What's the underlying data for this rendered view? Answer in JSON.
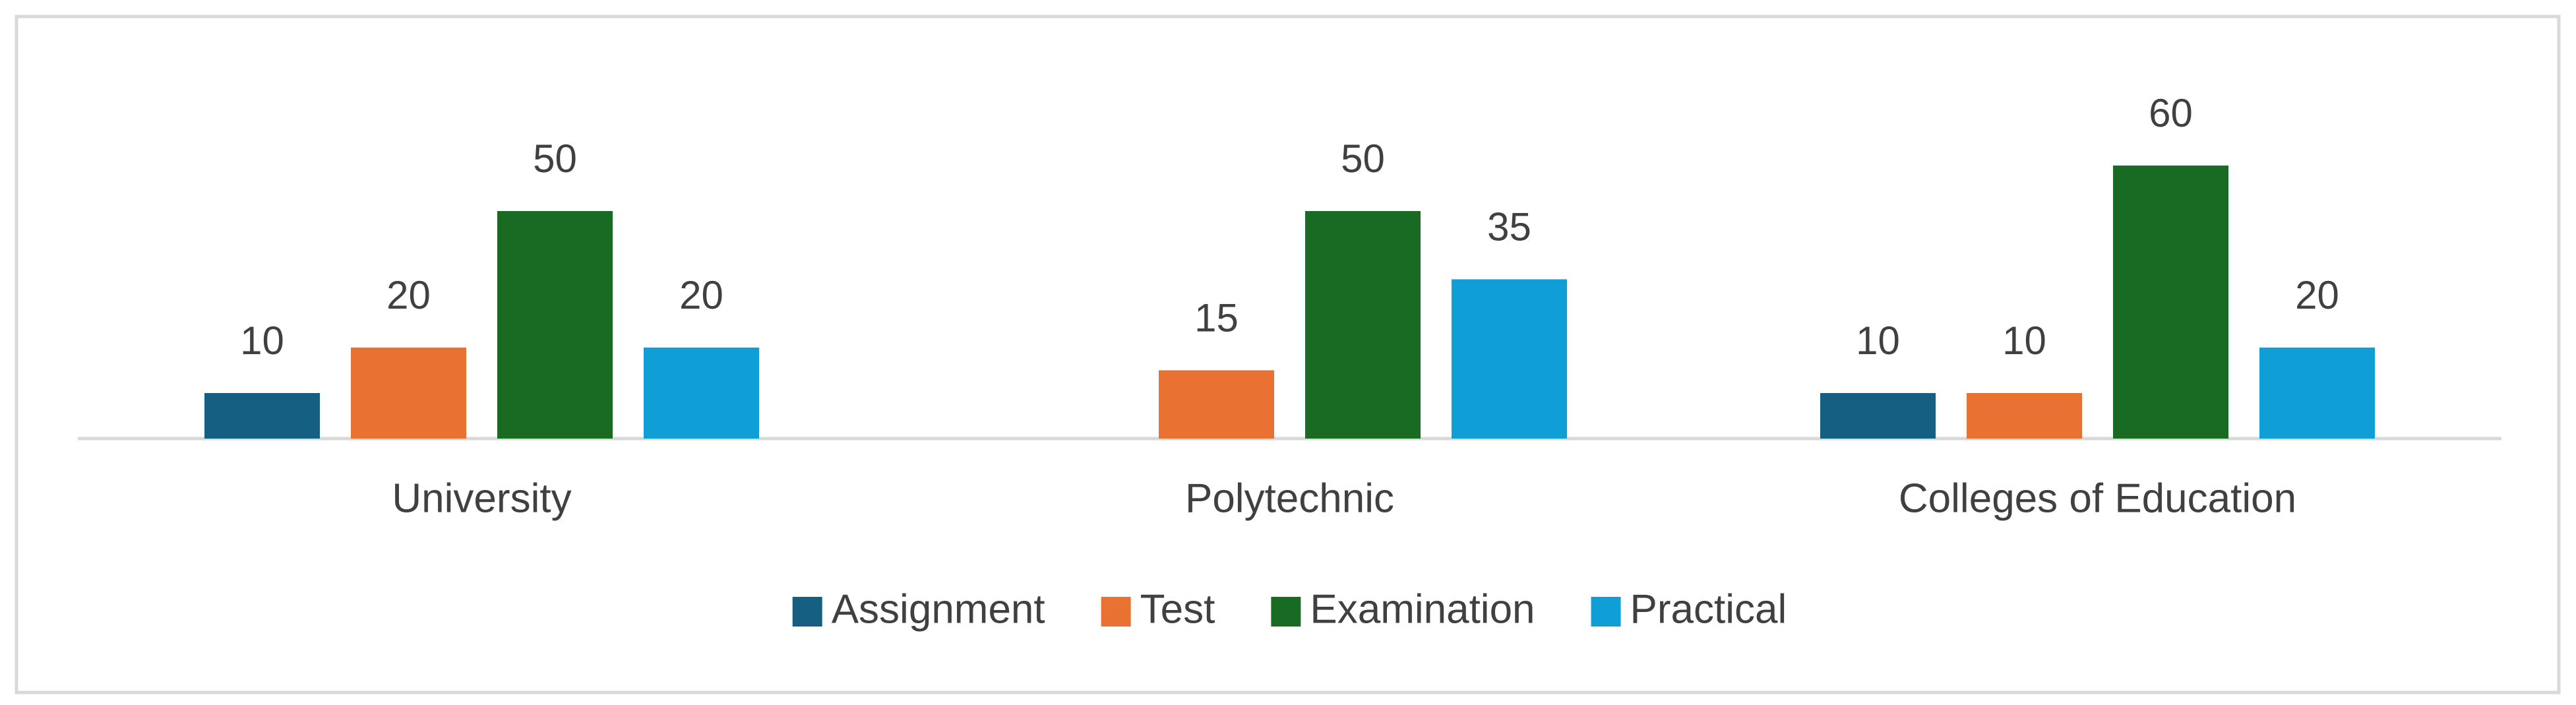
{
  "chart_data": {
    "type": "bar",
    "categories": [
      "University",
      "Polytechnic",
      "Colleges of Education"
    ],
    "series": [
      {
        "name": "Assignment",
        "color": "#156082",
        "values": [
          10,
          null,
          10
        ]
      },
      {
        "name": "Test",
        "color": "#e97132",
        "values": [
          20,
          15,
          10
        ]
      },
      {
        "name": "Examination",
        "color": "#196b24",
        "values": [
          50,
          50,
          60
        ]
      },
      {
        "name": "Practical",
        "color": "#0f9ed5",
        "values": [
          20,
          35,
          20
        ]
      }
    ],
    "legend": "bottom"
  }
}
